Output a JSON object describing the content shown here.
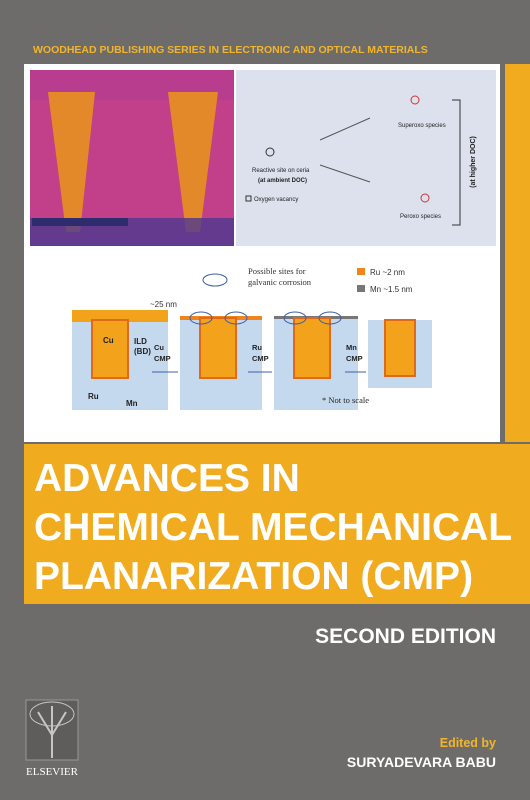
{
  "series": "WOODHEAD PUBLISHING SERIES IN ELECTRONIC AND OPTICAL MATERIALS",
  "title_lines": [
    "ADVANCES IN",
    "CHEMICAL MECHANICAL",
    "PLANARIZATION (CMP)"
  ],
  "edition": "SECOND EDITION",
  "credit": {
    "label": "Edited by",
    "name": "SURYADEVARA BABU"
  },
  "publisher": "ELSEVIER",
  "figure": {
    "mechanism": {
      "reactive_site": "Reactive site on ceria",
      "ambient": "(at ambient DOC)",
      "vacancy": "Oxygen vacancy",
      "superoxo": "Superoxo species",
      "peroxo": "Peroxo species",
      "higher": "(at higher DOC)"
    },
    "schematic": {
      "corrosion": [
        "Possible sites for",
        "galvanic corrosion"
      ],
      "legend": [
        "Ru ~2 nm",
        "Mn ~1.5 nm"
      ],
      "thickness": "~25 nm",
      "cu": "Cu",
      "ild": [
        "ILD",
        "(BD)"
      ],
      "ru": "Ru",
      "mn": "Mn",
      "steps": [
        [
          "Cu",
          "CMP"
        ],
        [
          "Ru",
          "CMP"
        ],
        [
          "Mn",
          "CMP"
        ]
      ],
      "note": "* Not to scale"
    }
  }
}
